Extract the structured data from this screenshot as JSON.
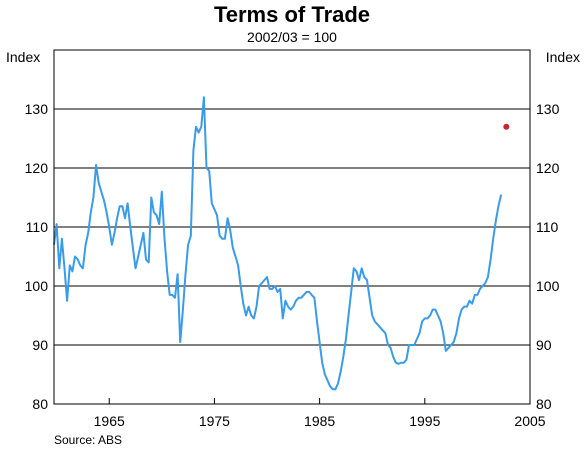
{
  "chart_data": {
    "type": "line",
    "title": "Terms of Trade",
    "subtitle": "2002/03 = 100",
    "ylabel_left": "Index",
    "ylabel_right": "Index",
    "source": "Source: ABS",
    "x_range": [
      1959.75,
      2005.0
    ],
    "ylim": [
      80,
      140
    ],
    "y_ticks": [
      80,
      90,
      100,
      110,
      120,
      130
    ],
    "x_ticks": [
      1965,
      1975,
      1985,
      1995,
      2005
    ],
    "x_tick_labels": [
      "1965",
      "1975",
      "1985",
      "1995",
      "2005"
    ],
    "grid": "horizontal",
    "colors": {
      "series": "#3a9be8",
      "forecast": "#c0282d",
      "grid": "#000000"
    },
    "series": [
      {
        "values": [
          [
            1959.75,
            107
          ],
          [
            1960.0,
            110.5
          ],
          [
            1960.25,
            103
          ],
          [
            1960.5,
            108
          ],
          [
            1960.75,
            103
          ],
          [
            1961.0,
            97.5
          ],
          [
            1961.25,
            103.5
          ],
          [
            1961.5,
            102.5
          ],
          [
            1961.75,
            105
          ],
          [
            1962.0,
            104.5
          ],
          [
            1962.25,
            103.5
          ],
          [
            1962.5,
            103
          ],
          [
            1962.75,
            107
          ],
          [
            1963.0,
            109
          ],
          [
            1963.25,
            112.5
          ],
          [
            1963.5,
            115
          ],
          [
            1963.75,
            120.5
          ],
          [
            1964.0,
            117.5
          ],
          [
            1964.25,
            116
          ],
          [
            1964.5,
            114.5
          ],
          [
            1964.75,
            112.5
          ],
          [
            1965.0,
            110
          ],
          [
            1965.25,
            107
          ],
          [
            1965.5,
            109
          ],
          [
            1965.75,
            111.5
          ],
          [
            1966.0,
            113.5
          ],
          [
            1966.25,
            113.5
          ],
          [
            1966.5,
            111.5
          ],
          [
            1966.75,
            114
          ],
          [
            1967.0,
            110
          ],
          [
            1967.25,
            106.5
          ],
          [
            1967.5,
            103
          ],
          [
            1967.75,
            105
          ],
          [
            1968.0,
            107
          ],
          [
            1968.25,
            109
          ],
          [
            1968.5,
            104.5
          ],
          [
            1968.75,
            104
          ],
          [
            1969.0,
            115
          ],
          [
            1969.25,
            112.5
          ],
          [
            1969.5,
            112
          ],
          [
            1969.75,
            110.5
          ],
          [
            1970.0,
            116
          ],
          [
            1970.25,
            108
          ],
          [
            1970.5,
            102.5
          ],
          [
            1970.75,
            98.5
          ],
          [
            1971.0,
            98.5
          ],
          [
            1971.25,
            98
          ],
          [
            1971.5,
            102
          ],
          [
            1971.75,
            90.5
          ],
          [
            1972.0,
            96
          ],
          [
            1972.25,
            102
          ],
          [
            1972.5,
            107
          ],
          [
            1972.75,
            108.5
          ],
          [
            1973.0,
            123
          ],
          [
            1973.25,
            127
          ],
          [
            1973.5,
            126
          ],
          [
            1973.75,
            127
          ],
          [
            1974.0,
            132
          ],
          [
            1974.25,
            120
          ],
          [
            1974.5,
            119.5
          ],
          [
            1974.75,
            114
          ],
          [
            1975.0,
            113
          ],
          [
            1975.25,
            112
          ],
          [
            1975.5,
            108.5
          ],
          [
            1975.75,
            108
          ],
          [
            1976.0,
            108
          ],
          [
            1976.25,
            111.5
          ],
          [
            1976.5,
            109.5
          ],
          [
            1976.75,
            106.5
          ],
          [
            1977.0,
            105
          ],
          [
            1977.25,
            103.5
          ],
          [
            1977.5,
            100
          ],
          [
            1977.75,
            97
          ],
          [
            1978.0,
            95
          ],
          [
            1978.25,
            96.5
          ],
          [
            1978.5,
            95
          ],
          [
            1978.75,
            94.5
          ],
          [
            1979.0,
            96.5
          ],
          [
            1979.25,
            100
          ],
          [
            1979.5,
            100.5
          ],
          [
            1979.75,
            101
          ],
          [
            1980.0,
            101.5
          ],
          [
            1980.25,
            99.5
          ],
          [
            1980.5,
            99.5
          ],
          [
            1980.75,
            100
          ],
          [
            1981.0,
            99
          ],
          [
            1981.25,
            99.5
          ],
          [
            1981.5,
            94.5
          ],
          [
            1981.75,
            97.5
          ],
          [
            1982.0,
            96.5
          ],
          [
            1982.25,
            96
          ],
          [
            1982.5,
            96.5
          ],
          [
            1982.75,
            97.5
          ],
          [
            1983.0,
            98
          ],
          [
            1983.25,
            98
          ],
          [
            1983.5,
            98.5
          ],
          [
            1983.75,
            99
          ],
          [
            1984.0,
            99
          ],
          [
            1984.25,
            98.5
          ],
          [
            1984.5,
            98
          ],
          [
            1984.75,
            94
          ],
          [
            1985.0,
            90.5
          ],
          [
            1985.25,
            87
          ],
          [
            1985.5,
            85
          ],
          [
            1985.75,
            84
          ],
          [
            1986.0,
            83
          ],
          [
            1986.25,
            82.5
          ],
          [
            1986.5,
            82.5
          ],
          [
            1986.75,
            83.5
          ],
          [
            1987.0,
            85.5
          ],
          [
            1987.25,
            88
          ],
          [
            1987.5,
            91
          ],
          [
            1987.75,
            95
          ],
          [
            1988.0,
            99
          ],
          [
            1988.25,
            103
          ],
          [
            1988.5,
            102.5
          ],
          [
            1988.75,
            101
          ],
          [
            1989.0,
            103
          ],
          [
            1989.25,
            101.5
          ],
          [
            1989.5,
            101
          ],
          [
            1989.75,
            98
          ],
          [
            1990.0,
            95
          ],
          [
            1990.25,
            94
          ],
          [
            1990.5,
            93.5
          ],
          [
            1990.75,
            93
          ],
          [
            1991.0,
            92.5
          ],
          [
            1991.25,
            92
          ],
          [
            1991.5,
            90
          ],
          [
            1991.75,
            89.5
          ],
          [
            1992.0,
            88
          ],
          [
            1992.25,
            87
          ],
          [
            1992.5,
            86.8
          ],
          [
            1992.75,
            87
          ],
          [
            1993.0,
            87
          ],
          [
            1993.25,
            87.5
          ],
          [
            1993.5,
            90
          ],
          [
            1993.75,
            90
          ],
          [
            1994.0,
            90
          ],
          [
            1994.25,
            91
          ],
          [
            1994.5,
            92
          ],
          [
            1994.75,
            94
          ],
          [
            1995.0,
            94.5
          ],
          [
            1995.25,
            94.5
          ],
          [
            1995.5,
            95
          ],
          [
            1995.75,
            96
          ],
          [
            1996.0,
            96
          ],
          [
            1996.25,
            95
          ],
          [
            1996.5,
            94
          ],
          [
            1996.75,
            92
          ],
          [
            1997.0,
            89
          ],
          [
            1997.25,
            89.5
          ],
          [
            1997.5,
            90
          ],
          [
            1997.75,
            90.5
          ],
          [
            1998.0,
            92
          ],
          [
            1998.25,
            94.5
          ],
          [
            1998.5,
            96
          ],
          [
            1998.75,
            96.5
          ],
          [
            1999.0,
            96.5
          ],
          [
            1999.25,
            97.5
          ],
          [
            1999.5,
            97
          ],
          [
            1999.75,
            98.5
          ],
          [
            2000.0,
            98.5
          ],
          [
            2000.25,
            99.5
          ],
          [
            2000.5,
            100
          ],
          [
            2000.75,
            100.5
          ],
          [
            2001.0,
            101.5
          ],
          [
            2001.25,
            104.5
          ],
          [
            2001.5,
            108
          ],
          [
            2001.75,
            111
          ],
          [
            2002.0,
            113.5
          ],
          [
            2002.25,
            115.5
          ]
        ]
      },
      {
        "type": "point",
        "values": [
          [
            2002.75,
            127
          ]
        ]
      }
    ]
  }
}
